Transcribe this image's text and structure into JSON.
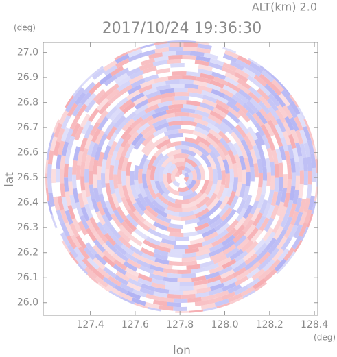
{
  "chart_data": {
    "type": "radar-ppi",
    "title": "2017/10/24 19:36:30",
    "subtitle": "ALT(km) 2.0",
    "x_label": "lon",
    "y_label": "lat",
    "x_unit": "(deg)",
    "y_unit": "(deg)",
    "xlim": [
      127.19,
      128.415
    ],
    "ylim": [
      25.95,
      27.04
    ],
    "xticks": [
      127.4,
      127.6,
      127.8,
      {
        "value": 128,
        "label": "128.0"
      },
      128.2,
      128.4
    ],
    "yticks": [
      {
        "value": 26,
        "label": "26.0"
      },
      26.1,
      26.2,
      26.3,
      26.4,
      26.5,
      26.6,
      26.7,
      26.8,
      26.9,
      {
        "value": 27,
        "label": "27.0"
      }
    ],
    "colors": [
      "#f5a3a8",
      "#a9aaf2"
    ]
  }
}
